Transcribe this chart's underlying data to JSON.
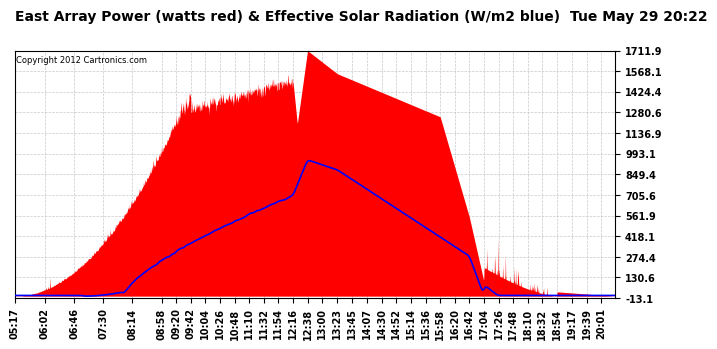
{
  "title": "East Array Power (watts red) & Effective Solar Radiation (W/m2 blue)  Tue May 29 20:22",
  "copyright_text": "Copyright 2012 Cartronics.com",
  "background_color": "#ffffff",
  "plot_bg_color": "#ffffff",
  "grid_color": "#bbbbbb",
  "yticks": [
    1711.9,
    1568.1,
    1424.4,
    1280.6,
    1136.9,
    993.1,
    849.4,
    705.6,
    561.9,
    418.1,
    274.4,
    130.6,
    -13.1
  ],
  "ymin": -13.1,
  "ymax": 1711.9,
  "xtick_labels": [
    "05:17",
    "06:02",
    "06:46",
    "07:30",
    "08:14",
    "08:58",
    "09:20",
    "09:42",
    "10:04",
    "10:26",
    "10:48",
    "11:10",
    "11:32",
    "11:54",
    "12:16",
    "12:38",
    "13:00",
    "13:23",
    "13:45",
    "14:07",
    "14:30",
    "14:52",
    "15:14",
    "15:36",
    "15:58",
    "16:20",
    "16:42",
    "17:04",
    "17:26",
    "17:48",
    "18:10",
    "18:32",
    "18:54",
    "19:17",
    "19:39",
    "20:01"
  ],
  "red_fill_color": "#ff0000",
  "blue_line_color": "#0000ff",
  "title_fontsize": 10,
  "tick_fontsize": 7
}
